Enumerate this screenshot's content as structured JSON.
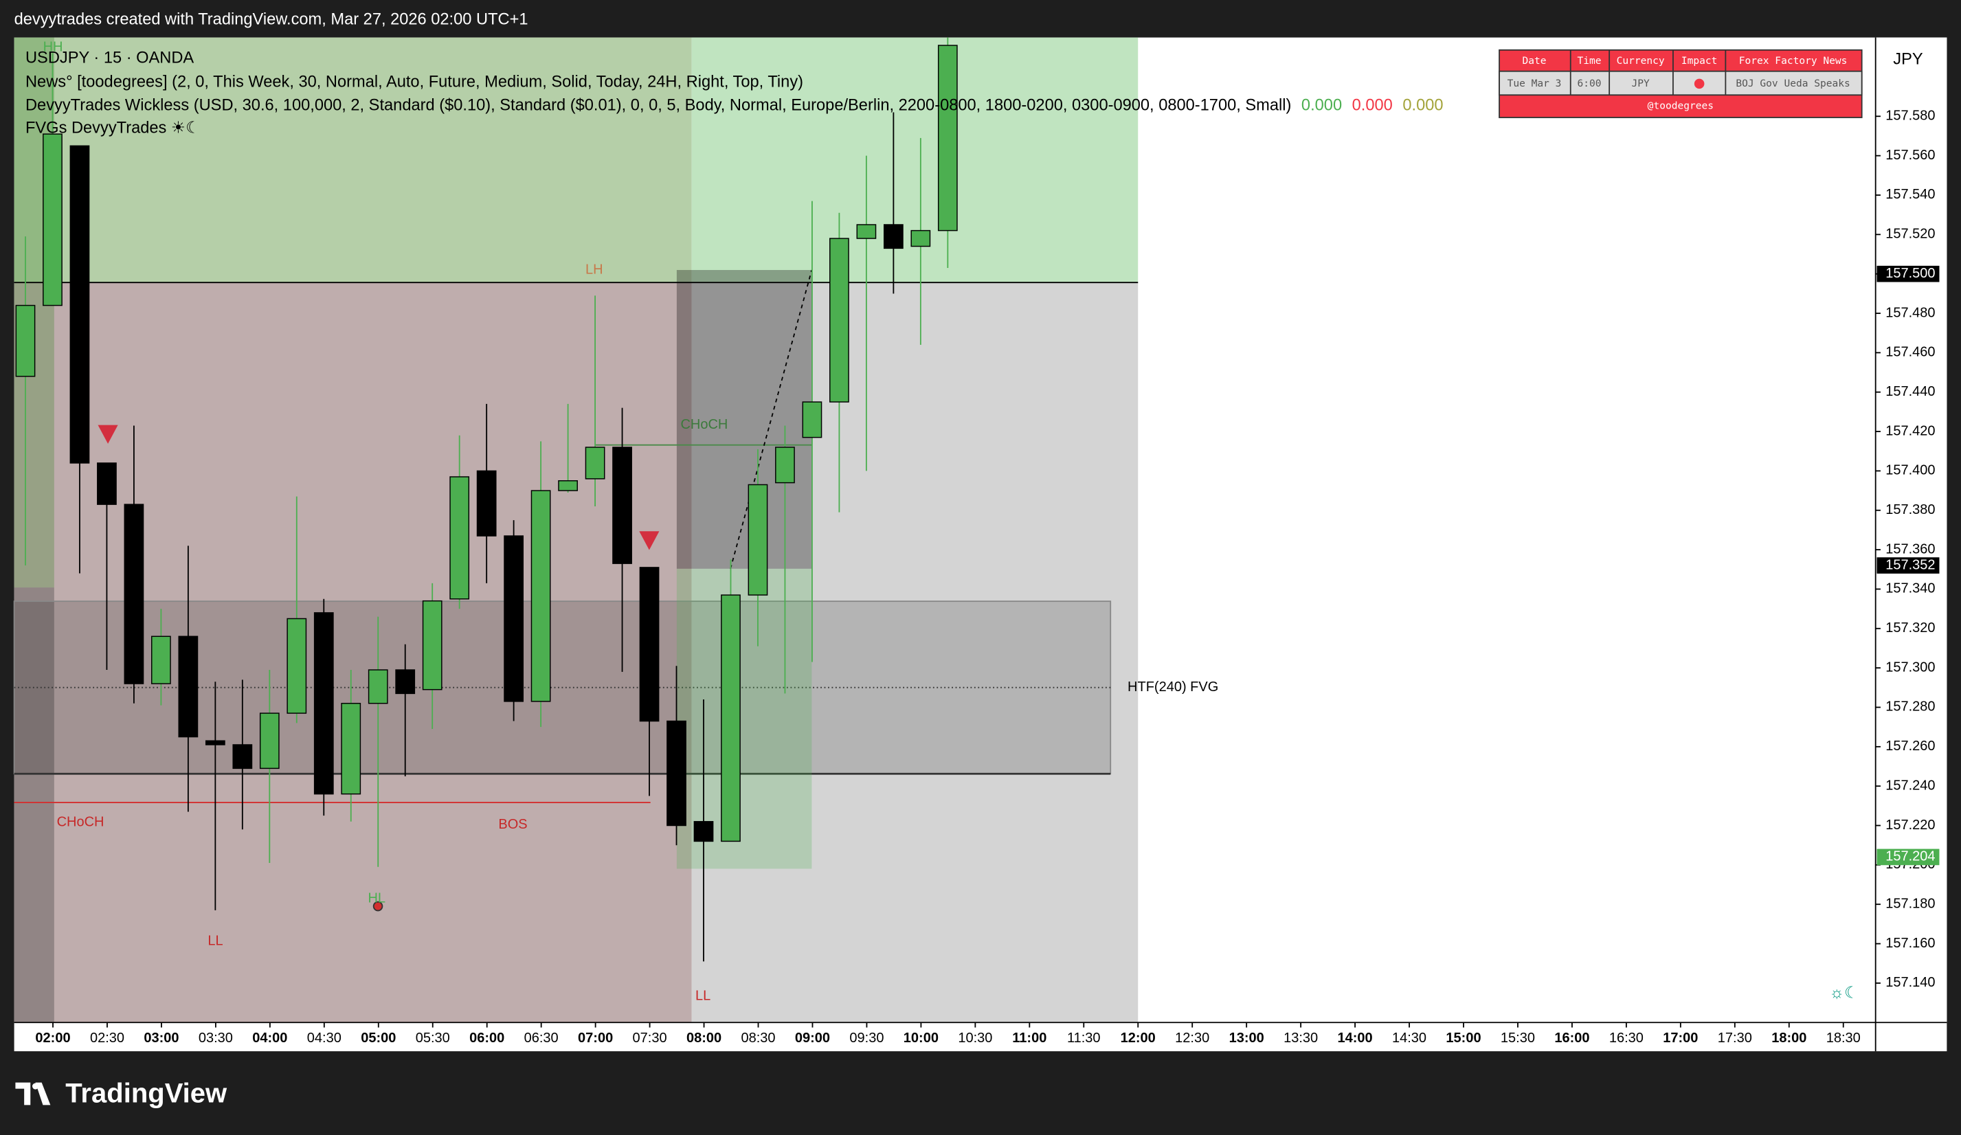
{
  "header": {
    "title": "devyytrades created with TradingView.com, Mar 27, 2026 02:00 UTC+1"
  },
  "chart_data": {
    "type": "candlestick",
    "legend": {
      "symbol": "USDJPY · 15 · OANDA",
      "news": "News° [toodegrees] (2, 0, This Week, 30, Normal, Auto, Future, Medium, Solid, Today, 24H, Right, Top, Tiny)",
      "wickless": "DevyyTrades Wickless (USD, 30.6, 100,000, 2, Standard ($0.10), Standard ($0.01), 0, 0, 5, Body, Normal, Europe/Berlin, 2200-0800, 1800-0200, 0300-0900, 0800-1700, Small)",
      "wickless_values": [
        {
          "value": 0,
          "label": "0.000",
          "color": "#4caf50"
        },
        {
          "value": 0,
          "label": "0.000",
          "color": "#f23645"
        },
        {
          "value": 0,
          "label": "0.000",
          "color": "#a3a33a"
        }
      ],
      "fvgs": "FVGs DevyyTrades ☀☾"
    },
    "currency": "JPY",
    "up_color": "#4caf50",
    "down_color": "#000000",
    "open": [
      157.448,
      157.484,
      157.565,
      157.404,
      157.383,
      157.292,
      157.316,
      157.263,
      157.261,
      157.249,
      157.277,
      157.328,
      157.236,
      157.282,
      157.299,
      157.289,
      157.335,
      157.4,
      157.367,
      157.283,
      157.39,
      157.396,
      157.412,
      157.351,
      157.273,
      157.222,
      157.212,
      157.337,
      157.394,
      157.417,
      157.435,
      157.518,
      157.525,
      157.514,
      157.522
    ],
    "high": [
      157.519,
      157.612,
      157.565,
      157.404,
      157.423,
      157.33,
      157.362,
      157.293,
      157.294,
      157.299,
      157.387,
      157.335,
      157.299,
      157.326,
      157.312,
      157.343,
      157.418,
      157.434,
      157.375,
      157.415,
      157.434,
      157.489,
      157.432,
      157.351,
      157.301,
      157.284,
      157.355,
      157.411,
      157.423,
      157.537,
      157.531,
      157.56,
      157.582,
      157.569,
      157.62
    ],
    "low": [
      157.352,
      157.484,
      157.348,
      157.299,
      157.282,
      157.281,
      157.227,
      157.177,
      157.218,
      157.201,
      157.272,
      157.225,
      157.222,
      157.199,
      157.245,
      157.269,
      157.33,
      157.343,
      157.273,
      157.27,
      157.389,
      157.382,
      157.298,
      157.235,
      157.21,
      157.151,
      157.212,
      157.311,
      157.287,
      157.303,
      157.379,
      157.4,
      157.49,
      157.464,
      157.503
    ],
    "close": [
      157.484,
      157.571,
      157.404,
      157.383,
      157.292,
      157.316,
      157.265,
      157.261,
      157.249,
      157.277,
      157.325,
      157.236,
      157.282,
      157.299,
      157.287,
      157.334,
      157.397,
      157.367,
      157.283,
      157.39,
      157.395,
      157.412,
      157.353,
      157.273,
      157.22,
      157.212,
      157.337,
      157.393,
      157.412,
      157.435,
      157.518,
      157.525,
      157.513,
      157.522,
      157.616
    ],
    "ylim": [
      157.12,
      157.62
    ],
    "yticks": [
      {
        "value": 157.14,
        "label": "157.140"
      },
      {
        "value": 157.16,
        "label": "157.160"
      },
      {
        "value": 157.18,
        "label": "157.180"
      },
      {
        "value": 157.2,
        "label": "157.200"
      },
      {
        "value": 157.22,
        "label": "157.220"
      },
      {
        "value": 157.24,
        "label": "157.240"
      },
      {
        "value": 157.26,
        "label": "157.260"
      },
      {
        "value": 157.28,
        "label": "157.280"
      },
      {
        "value": 157.3,
        "label": "157.300"
      },
      {
        "value": 157.32,
        "label": "157.320"
      },
      {
        "value": 157.34,
        "label": "157.340"
      },
      {
        "value": 157.36,
        "label": "157.360"
      },
      {
        "value": 157.38,
        "label": "157.380"
      },
      {
        "value": 157.4,
        "label": "157.400"
      },
      {
        "value": 157.42,
        "label": "157.420"
      },
      {
        "value": 157.44,
        "label": "157.440"
      },
      {
        "value": 157.46,
        "label": "157.460"
      },
      {
        "value": 157.48,
        "label": "157.480"
      },
      {
        "value": 157.5,
        "label": "157.500"
      },
      {
        "value": 157.52,
        "label": "157.520"
      },
      {
        "value": 157.54,
        "label": "157.540"
      },
      {
        "value": 157.56,
        "label": "157.560"
      },
      {
        "value": 157.58,
        "label": "157.580"
      }
    ],
    "price_labels": [
      {
        "value": 157.5,
        "label": "157.500",
        "color": "#000000"
      },
      {
        "value": 157.352,
        "label": "157.352",
        "color": "#000000"
      },
      {
        "value": 157.204,
        "label": "157.204",
        "color": "#4caf50"
      }
    ],
    "xticks": [
      "02:00",
      "02:30",
      "03:00",
      "03:30",
      "04:00",
      "04:30",
      "05:00",
      "05:30",
      "06:00",
      "06:30",
      "07:00",
      "07:30",
      "08:00",
      "08:30",
      "09:00",
      "09:30",
      "10:00",
      "10:30",
      "11:00",
      "11:30",
      "12:00",
      "12:30",
      "13:00",
      "13:30",
      "14:00",
      "14:30",
      "15:00",
      "15:30",
      "16:00",
      "16:30",
      "17:00",
      "17:30",
      "18:00",
      "18:30"
    ],
    "annotations": [
      "HH",
      "LH",
      "CHoCH",
      "CHoCH",
      "BOS",
      "LL",
      "HL",
      "LL",
      "HTF(240) FVG"
    ]
  },
  "news_table": {
    "headers": [
      "Date",
      "Time",
      "Currency",
      "Impact",
      "Forex Factory News"
    ],
    "row": [
      "Tue Mar 3",
      "6:00",
      "JPY",
      "BOJ Gov Ueda Speaks"
    ],
    "footer": "@toodegrees"
  },
  "footer": {
    "logo": "TradingView"
  }
}
